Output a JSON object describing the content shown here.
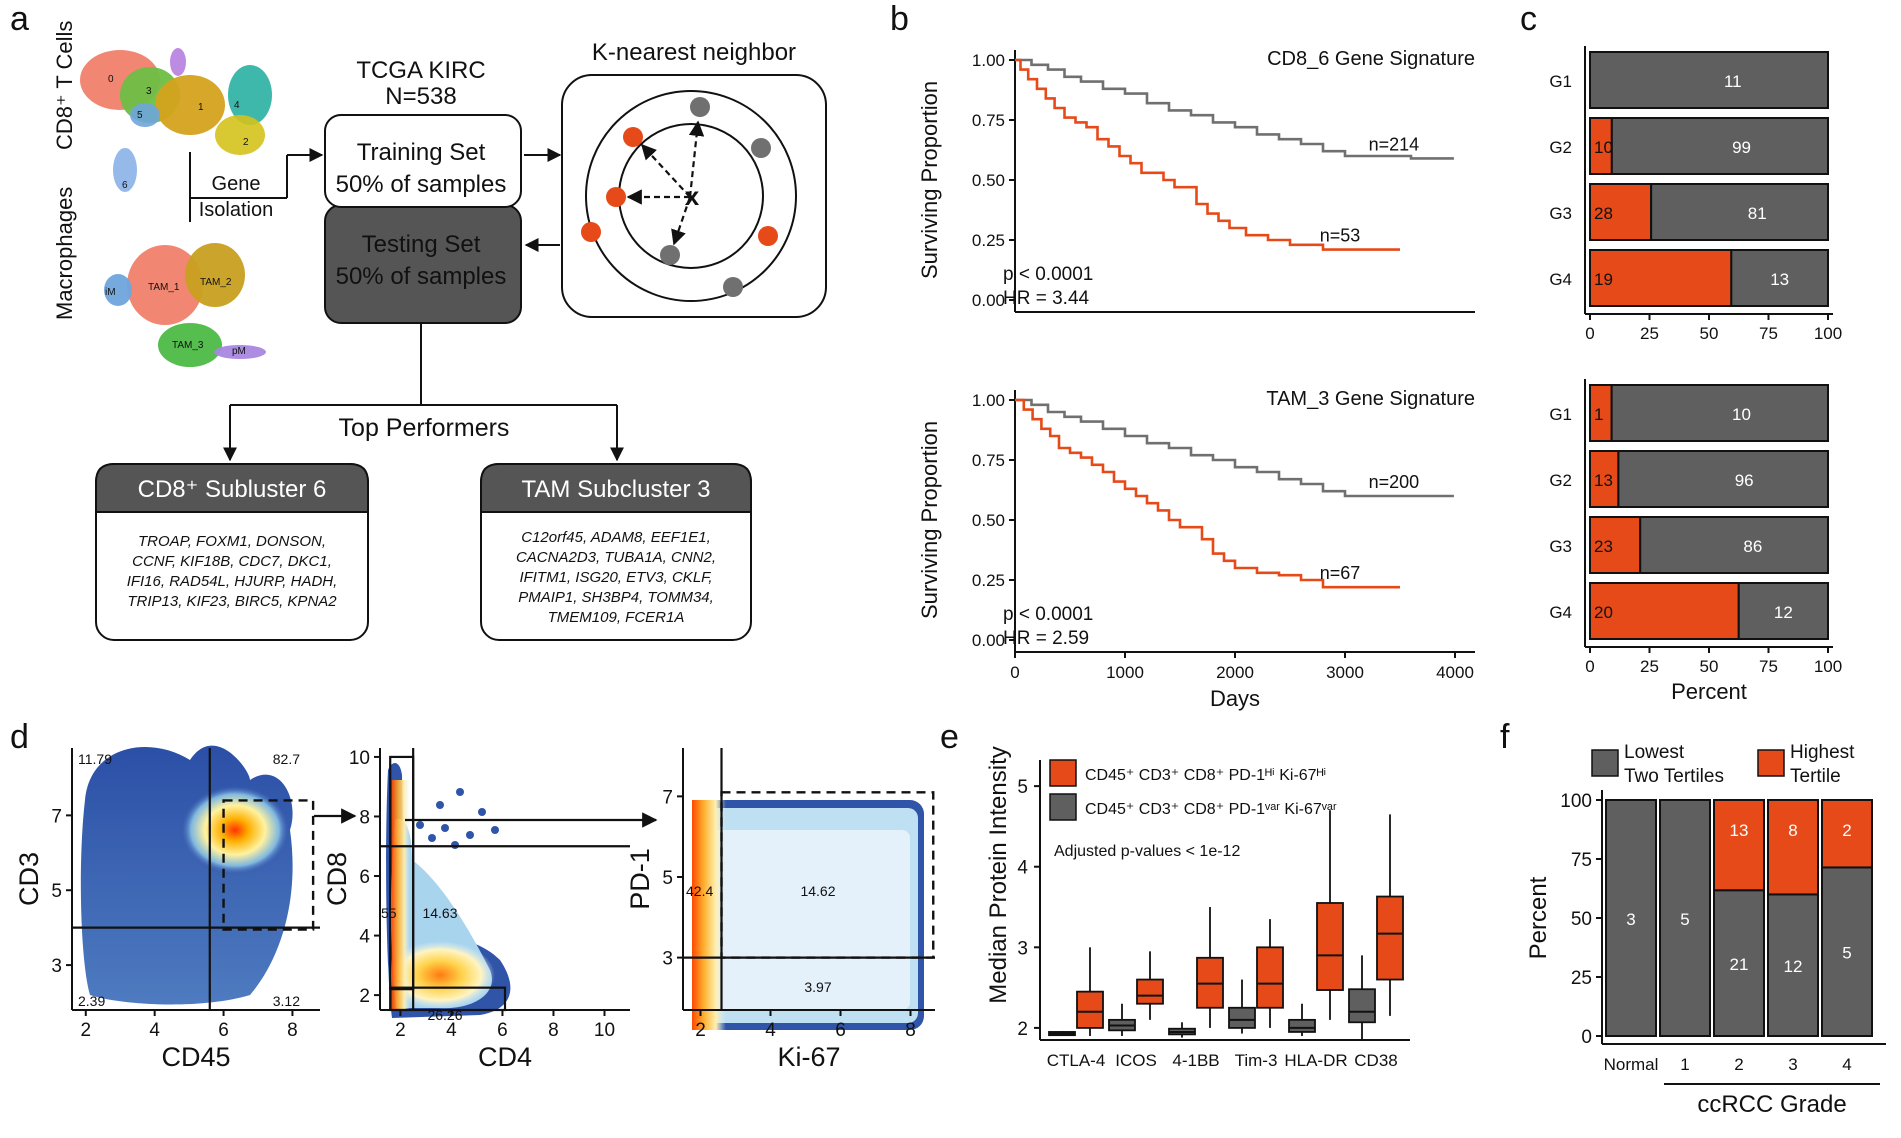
{
  "panels": {
    "a": {
      "letter": "a",
      "cd8_label": "CD8⁺ T Cells",
      "mac_label": "Macrophages",
      "gene_isolation": [
        "Gene",
        "Isolation"
      ],
      "tcga_title": "TCGA KIRC",
      "tcga_n": "N=538",
      "training_set": [
        "Training Set",
        "50% of samples"
      ],
      "testing_set": [
        "Testing Set",
        "50% of samples"
      ],
      "knn_title": "K-nearest neighbor",
      "knn_center": "x",
      "top_performers": "Top Performers",
      "umap_cd8_clusters": [
        "0",
        "1",
        "2",
        "3",
        "4",
        "5",
        "6"
      ],
      "umap_mac_clusters": [
        "TAM_1",
        "TAM_2",
        "TAM_3",
        "pM",
        "iM"
      ],
      "box_left": {
        "title": "CD8⁺ Subluster 6",
        "genes": [
          "TROAP, FOXM1, DONSON,",
          "CCNF, KIF18B, CDC7, DKC1,",
          "IFI16, RAD54L, HJURP, HADH,",
          "TRIP13, KIF23, BIRC5, KPNA2"
        ]
      },
      "box_right": {
        "title": "TAM Subcluster 3",
        "genes": [
          "C12orf45, ADAM8, EEF1E1,",
          "CACNA2D3, TUBA1A, CNN2,",
          "IFITM1, ISG20, ETV3, CKLF,",
          "PMAIP1, SH3BP4, TOMM34,",
          "TMEM109, FCER1A"
        ]
      }
    },
    "b": {
      "letter": "b"
    },
    "c": {
      "letter": "c"
    },
    "d": {
      "letter": "d"
    },
    "e": {
      "letter": "e"
    },
    "f": {
      "letter": "f"
    }
  },
  "colors": {
    "orange": "#E64A19",
    "gray": "#5F5F5F",
    "km_gray": "#707070",
    "dark_box": "#555555"
  },
  "chart_data": [
    {
      "id": "b_top",
      "type": "line",
      "title": "CD8_6 Gene Signature",
      "xlabel": "",
      "ylabel": "Surviving Proportion",
      "xlim": [
        0,
        4000
      ],
      "ylim": [
        0,
        1
      ],
      "yticks": [
        "0.00",
        "0.25",
        "0.50",
        "0.75",
        "1.00"
      ],
      "pvalue": "p < 0.0001",
      "hr": "HR = 3.44",
      "series": [
        {
          "name": "n=214",
          "color": "gray",
          "x": [
            0,
            150,
            300,
            450,
            600,
            800,
            1000,
            1200,
            1400,
            1600,
            1800,
            2000,
            2200,
            2400,
            2600,
            2800,
            3000,
            3200,
            3400,
            3600,
            3990
          ],
          "y": [
            1.0,
            0.98,
            0.96,
            0.93,
            0.91,
            0.88,
            0.86,
            0.82,
            0.79,
            0.77,
            0.74,
            0.72,
            0.69,
            0.67,
            0.65,
            0.62,
            0.6,
            0.6,
            0.6,
            0.59,
            0.59
          ]
        },
        {
          "name": "n=53",
          "color": "orange",
          "x": [
            0,
            50,
            120,
            200,
            280,
            360,
            450,
            550,
            650,
            750,
            850,
            950,
            1050,
            1150,
            1250,
            1350,
            1450,
            1550,
            1650,
            1750,
            1850,
            1950,
            2100,
            2300,
            2500,
            2800,
            3100,
            3500
          ],
          "y": [
            1.0,
            0.96,
            0.92,
            0.88,
            0.84,
            0.8,
            0.76,
            0.74,
            0.72,
            0.67,
            0.64,
            0.6,
            0.57,
            0.53,
            0.53,
            0.5,
            0.47,
            0.47,
            0.4,
            0.36,
            0.33,
            0.3,
            0.27,
            0.25,
            0.23,
            0.21,
            0.21,
            0.21
          ]
        }
      ]
    },
    {
      "id": "b_bottom",
      "type": "line",
      "title": "TAM_3 Gene Signature",
      "xlabel": "Days",
      "ylabel": "Surviving Proportion",
      "xlim": [
        0,
        4000
      ],
      "ylim": [
        0,
        1
      ],
      "xticks": [
        "0",
        "1000",
        "2000",
        "3000",
        "4000"
      ],
      "yticks": [
        "0.00",
        "0.25",
        "0.50",
        "0.75",
        "1.00"
      ],
      "pvalue": "p < 0.0001",
      "hr": "HR = 2.59",
      "series": [
        {
          "name": "n=200",
          "color": "gray",
          "x": [
            0,
            150,
            300,
            450,
            600,
            800,
            1000,
            1200,
            1400,
            1600,
            1800,
            2000,
            2200,
            2400,
            2600,
            2800,
            3000,
            3300,
            3600,
            3990
          ],
          "y": [
            1.0,
            0.98,
            0.95,
            0.93,
            0.91,
            0.88,
            0.85,
            0.82,
            0.8,
            0.77,
            0.75,
            0.72,
            0.7,
            0.67,
            0.65,
            0.62,
            0.6,
            0.6,
            0.6,
            0.6
          ]
        },
        {
          "name": "n=67",
          "color": "orange",
          "x": [
            0,
            80,
            160,
            240,
            320,
            400,
            500,
            600,
            700,
            800,
            900,
            1000,
            1100,
            1200,
            1300,
            1400,
            1500,
            1600,
            1700,
            1800,
            1900,
            2000,
            2200,
            2400,
            2600,
            2800,
            3100,
            3500
          ],
          "y": [
            1.0,
            0.96,
            0.92,
            0.88,
            0.85,
            0.8,
            0.78,
            0.76,
            0.73,
            0.7,
            0.66,
            0.63,
            0.6,
            0.57,
            0.54,
            0.5,
            0.47,
            0.47,
            0.42,
            0.36,
            0.33,
            0.3,
            0.28,
            0.27,
            0.25,
            0.22,
            0.22,
            0.22
          ]
        }
      ]
    },
    {
      "id": "c_top",
      "type": "bar",
      "orientation": "horizontal-stacked",
      "categories": [
        "G1",
        "G2",
        "G3",
        "G4"
      ],
      "xlim": [
        0,
        100
      ],
      "xticks": [
        "0",
        "25",
        "50",
        "75",
        "100"
      ],
      "xlabel": "",
      "series": [
        {
          "name": "",
          "color": "orange",
          "counts": [
            0,
            10,
            28,
            19
          ]
        },
        {
          "name": "",
          "color": "gray",
          "counts": [
            11,
            99,
            81,
            13
          ]
        }
      ]
    },
    {
      "id": "c_bottom",
      "type": "bar",
      "orientation": "horizontal-stacked",
      "categories": [
        "G1",
        "G2",
        "G3",
        "G4"
      ],
      "xlim": [
        0,
        100
      ],
      "xticks": [
        "0",
        "25",
        "50",
        "75",
        "100"
      ],
      "xlabel": "Percent",
      "series": [
        {
          "name": "",
          "color": "orange",
          "counts": [
            1,
            13,
            23,
            20
          ]
        },
        {
          "name": "",
          "color": "gray",
          "counts": [
            10,
            96,
            86,
            12
          ]
        }
      ]
    },
    {
      "id": "d1",
      "type": "scatter",
      "xlabel": "CD45",
      "ylabel": "CD3",
      "xlim": [
        1.6,
        8.8
      ],
      "ylim": [
        1.8,
        8.8
      ],
      "xticks": [
        2,
        4,
        6,
        8
      ],
      "yticks": [
        3,
        5,
        7
      ],
      "gate_lines": {
        "x": 5.6,
        "y": 4.0
      },
      "gate_box": [
        6.0,
        3.95,
        8.6,
        7.4
      ],
      "quadrants": [
        "11.79",
        "82.7",
        "2.39",
        "3.12"
      ]
    },
    {
      "id": "d2",
      "type": "scatter",
      "xlabel": "CD4",
      "ylabel": "CD8",
      "xlim": [
        1.2,
        11
      ],
      "ylim": [
        1.5,
        10.3
      ],
      "xticks": [
        2,
        4,
        6,
        8,
        10
      ],
      "yticks": [
        2,
        4,
        6,
        8,
        10
      ],
      "gate_lines": {
        "x": 2.5,
        "y": 7.0
      },
      "boxes": [
        [
          1.6,
          2.2,
          2.5,
          10.0
        ],
        [
          1.6,
          1.5,
          6.1,
          2.25
        ]
      ],
      "labels": [
        "55",
        "14.63",
        "26.26"
      ]
    },
    {
      "id": "d3",
      "type": "scatter",
      "xlabel": "Ki-67",
      "ylabel": "PD-1",
      "xlim": [
        1.5,
        8.7
      ],
      "ylim": [
        1.7,
        8.2
      ],
      "xticks": [
        2,
        4,
        6,
        8
      ],
      "yticks": [
        3,
        5,
        7
      ],
      "gate_lines": {
        "x": 2.6,
        "y": 3.0
      },
      "gate_box": [
        2.6,
        3.0,
        8.65,
        7.1
      ],
      "labels": [
        "42.4",
        "14.62",
        "3.97"
      ]
    },
    {
      "id": "e",
      "type": "box",
      "ylabel": "Median Protein Intensity",
      "ylim": [
        1.85,
        5.2
      ],
      "yticks": [
        2,
        3,
        4,
        5
      ],
      "categories": [
        "CTLA-4",
        "ICOS",
        "4-1BB",
        "Tim-3",
        "HLA-DR",
        "CD38"
      ],
      "legend": [
        {
          "label": "CD45⁺ CD3⁺ CD8⁺ PD-1ᴴⁱ Ki-67ᴴⁱ",
          "color": "orange"
        },
        {
          "label": "CD45⁺ CD3⁺ CD8⁺ PD-1ᵛᵃʳ Ki-67ᵛᵃʳ",
          "color": "gray"
        }
      ],
      "note": "Adjusted p-values < 1e-12",
      "series": [
        {
          "name": "CD45⁺ CD3⁺ CD8⁺ PD-1ᵛᵃʳ Ki-67ᵛᵃʳ",
          "color": "gray",
          "stats": [
            [
              1.9,
              1.91,
              1.93,
              1.95,
              1.96
            ],
            [
              1.9,
              1.97,
              2.03,
              2.1,
              2.3
            ],
            [
              1.88,
              1.92,
              1.95,
              1.99,
              2.07
            ],
            [
              1.93,
              2.0,
              2.1,
              2.25,
              2.6
            ],
            [
              1.9,
              1.95,
              2.0,
              2.1,
              2.3
            ],
            [
              1.85,
              2.07,
              2.2,
              2.48,
              2.9
            ]
          ]
        },
        {
          "name": "CD45⁺ CD3⁺ CD8⁺ PD-1ᴴⁱ Ki-67ᴴⁱ",
          "color": "orange",
          "stats": [
            [
              1.9,
              2.0,
              2.2,
              2.45,
              3.0
            ],
            [
              2.1,
              2.3,
              2.4,
              2.6,
              2.95
            ],
            [
              2.0,
              2.25,
              2.55,
              2.87,
              3.5
            ],
            [
              2.0,
              2.25,
              2.55,
              3.0,
              3.35
            ],
            [
              2.1,
              2.47,
              2.9,
              3.55,
              4.7
            ],
            [
              2.15,
              2.6,
              3.17,
              3.63,
              4.65
            ]
          ]
        }
      ]
    },
    {
      "id": "f",
      "type": "bar",
      "orientation": "vertical-stacked",
      "ylabel": "Percent",
      "xlabel": "ccRCC Grade",
      "ylim": [
        0,
        100
      ],
      "yticks": [
        "0",
        "25",
        "50",
        "75",
        "100"
      ],
      "categories": [
        "Normal",
        "1",
        "2",
        "3",
        "4"
      ],
      "series": [
        {
          "name": "Lowest Two Tertiles",
          "color": "gray",
          "counts": [
            3,
            5,
            21,
            12,
            5
          ]
        },
        {
          "name": "Highest Tertile",
          "color": "orange",
          "counts": [
            0,
            0,
            13,
            8,
            2
          ]
        }
      ]
    }
  ]
}
